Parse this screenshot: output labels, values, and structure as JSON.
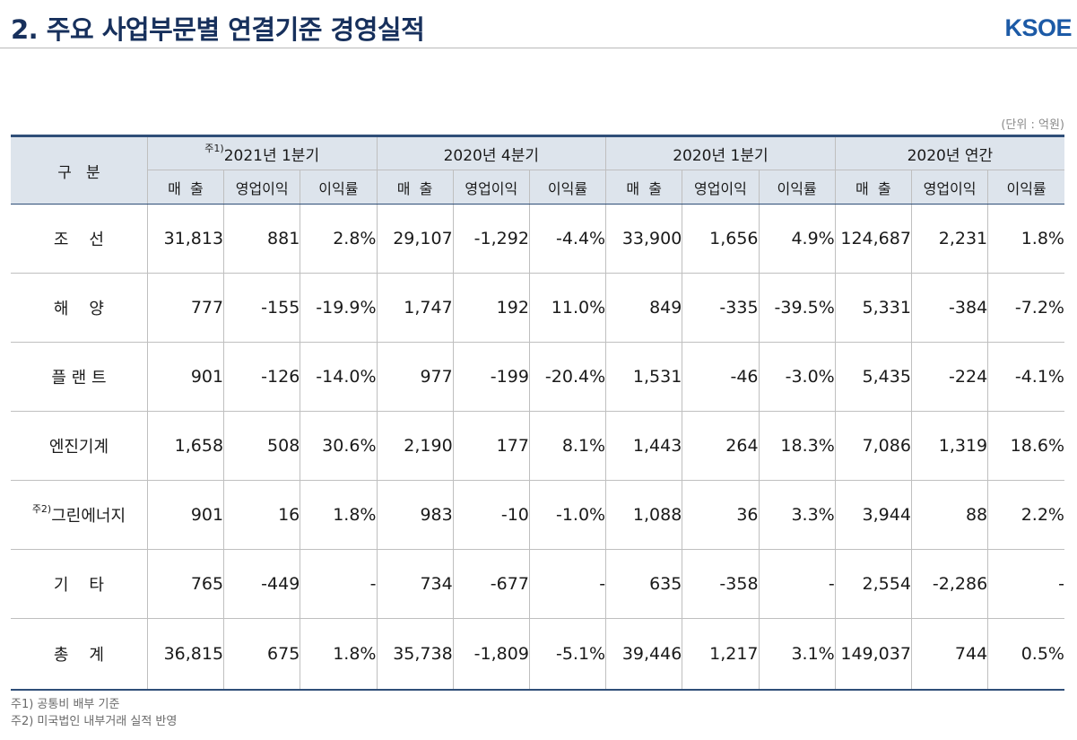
{
  "header": {
    "title": "2. 주요 사업부문별 연결기준 경영실적",
    "logo": "KSOE"
  },
  "unit_note": "(단위 : 억원)",
  "table": {
    "row_header": "구   분",
    "periods": [
      {
        "note": "주1)",
        "label": "2021년 1분기"
      },
      {
        "note": "",
        "label": "2020년 4분기"
      },
      {
        "note": "",
        "label": "2020년 1분기"
      },
      {
        "note": "",
        "label": "2020년 연간"
      }
    ],
    "sub_headers": [
      "매  출",
      "영업이익",
      "이익률"
    ],
    "rows": [
      {
        "note": "",
        "label": "조    선",
        "values": [
          "31,813",
          "881",
          "2.8%",
          "29,107",
          "-1,292",
          "-4.4%",
          "33,900",
          "1,656",
          "4.9%",
          "124,687",
          "2,231",
          "1.8%"
        ]
      },
      {
        "note": "",
        "label": "해    양",
        "values": [
          "777",
          "-155",
          "-19.9%",
          "1,747",
          "192",
          "11.0%",
          "849",
          "-335",
          "-39.5%",
          "5,331",
          "-384",
          "-7.2%"
        ]
      },
      {
        "note": "",
        "label": "플 랜 트",
        "values": [
          "901",
          "-126",
          "-14.0%",
          "977",
          "-199",
          "-20.4%",
          "1,531",
          "-46",
          "-3.0%",
          "5,435",
          "-224",
          "-4.1%"
        ]
      },
      {
        "note": "",
        "label": "엔진기계",
        "values": [
          "1,658",
          "508",
          "30.6%",
          "2,190",
          "177",
          "8.1%",
          "1,443",
          "264",
          "18.3%",
          "7,086",
          "1,319",
          "18.6%"
        ]
      },
      {
        "note": "주2)",
        "label": "그린에너지",
        "values": [
          "901",
          "16",
          "1.8%",
          "983",
          "-10",
          "-1.0%",
          "1,088",
          "36",
          "3.3%",
          "3,944",
          "88",
          "2.2%"
        ]
      },
      {
        "note": "",
        "label": "기    타",
        "values": [
          "765",
          "-449",
          "-",
          "734",
          "-677",
          "-",
          "635",
          "-358",
          "-",
          "2,554",
          "-2,286",
          "-"
        ]
      },
      {
        "note": "",
        "label": "총    계",
        "values": [
          "36,815",
          "675",
          "1.8%",
          "35,738",
          "-1,809",
          "-5.1%",
          "39,446",
          "1,217",
          "3.1%",
          "149,037",
          "744",
          "0.5%"
        ]
      }
    ]
  },
  "notes": [
    "주1) 공통비 배부 기준",
    "주2) 미국법인 내부거래 실적 반영"
  ]
}
